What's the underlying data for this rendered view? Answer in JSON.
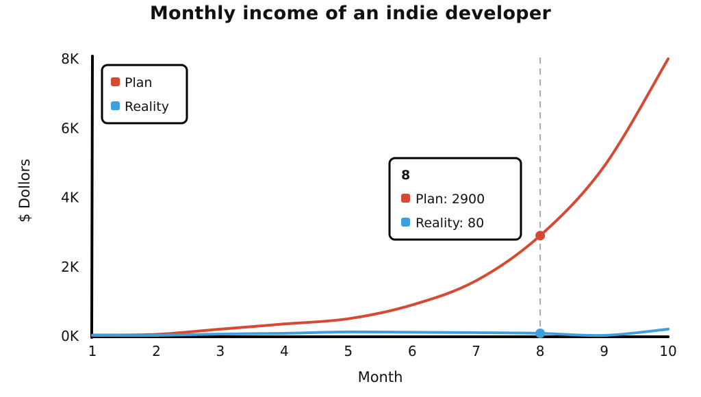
{
  "chart_data": {
    "type": "line",
    "title": "Monthly income of an indie developer",
    "xlabel": "Month",
    "ylabel": "$ Dollors",
    "x": [
      1,
      2,
      3,
      4,
      5,
      6,
      7,
      8,
      9,
      10
    ],
    "xlim": [
      1,
      10
    ],
    "ylim": [
      0,
      8000
    ],
    "x_ticks": [
      "1",
      "2",
      "3",
      "4",
      "5",
      "6",
      "7",
      "8",
      "9",
      "10"
    ],
    "y_ticks": [
      {
        "value": 0,
        "label": "0K"
      },
      {
        "value": 2000,
        "label": "2K"
      },
      {
        "value": 4000,
        "label": "4K"
      },
      {
        "value": 6000,
        "label": "6K"
      },
      {
        "value": 8000,
        "label": "8K"
      }
    ],
    "grid": false,
    "legend": "top-left",
    "series": [
      {
        "name": "Plan",
        "color": "#d44a33",
        "values": [
          30,
          50,
          200,
          350,
          500,
          900,
          1600,
          2900,
          4900,
          8000
        ]
      },
      {
        "name": "Reality",
        "color": "#3ea0da",
        "values": [
          20,
          20,
          60,
          80,
          120,
          110,
          100,
          80,
          20,
          200
        ]
      }
    ],
    "tooltip": {
      "title": "8",
      "x": 8,
      "lines": [
        {
          "text": "Plan: 2900",
          "color": "#d44a33"
        },
        {
          "text": "Reality: 80",
          "color": "#3ea0da"
        }
      ]
    }
  }
}
